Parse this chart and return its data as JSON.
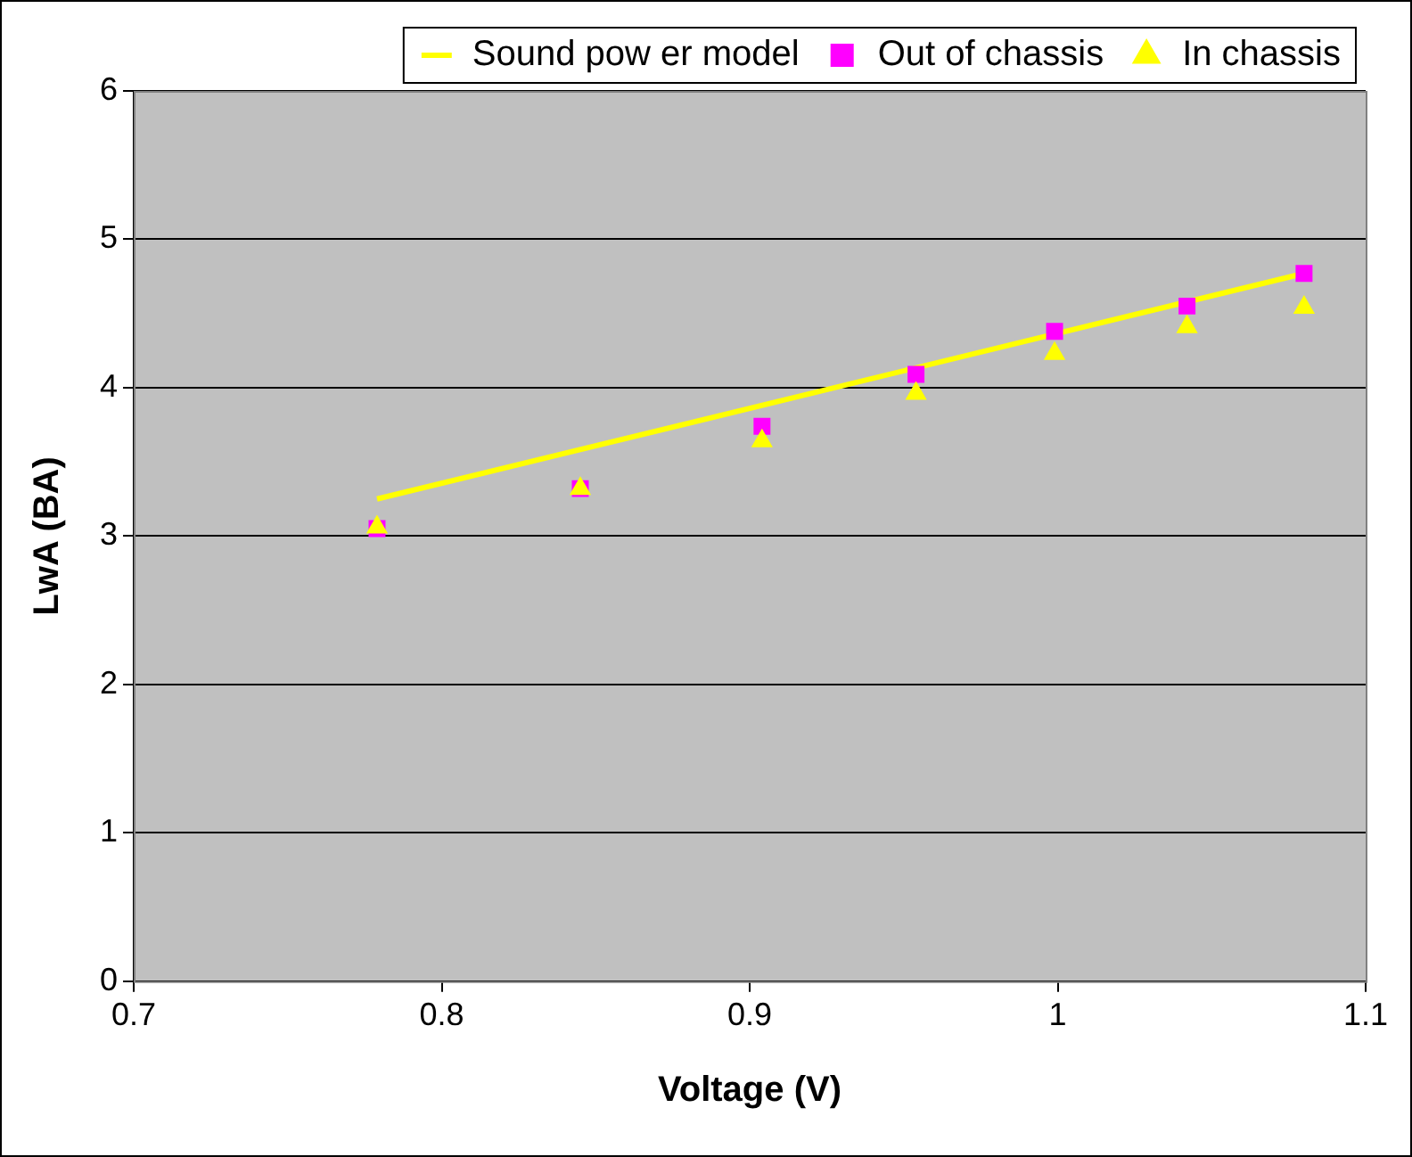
{
  "chart_data": {
    "type": "scatter",
    "xlabel": "Voltage (V)",
    "ylabel": "LwA (BA)",
    "xlim": [
      0.7,
      1.1
    ],
    "xticks": [
      0.7,
      0.8,
      0.9,
      1,
      1.1
    ],
    "ylim": [
      0,
      6
    ],
    "yticks": [
      0,
      1,
      2,
      3,
      4,
      5,
      6
    ],
    "grid": "y",
    "legend": "top",
    "series": [
      {
        "name": "Sound pow er model",
        "type": "line",
        "color": "#ffff00",
        "marker": "none",
        "x": [
          0.779,
          1.08
        ],
        "values": [
          3.25,
          4.77
        ]
      },
      {
        "name": "Out of chassis",
        "type": "scatter",
        "color": "#ff00ff",
        "marker": "square",
        "x": [
          0.779,
          0.845,
          0.904,
          0.954,
          0.999,
          1.042,
          1.08
        ],
        "values": [
          3.05,
          3.32,
          3.74,
          4.09,
          4.38,
          4.55,
          4.77
        ]
      },
      {
        "name": "In chassis",
        "type": "scatter",
        "color": "#ffff00",
        "marker": "triangle",
        "x": [
          0.779,
          0.845,
          0.904,
          0.954,
          0.999,
          1.042,
          1.08
        ],
        "values": [
          3.06,
          3.32,
          3.64,
          3.96,
          4.23,
          4.41,
          4.54
        ]
      }
    ]
  }
}
